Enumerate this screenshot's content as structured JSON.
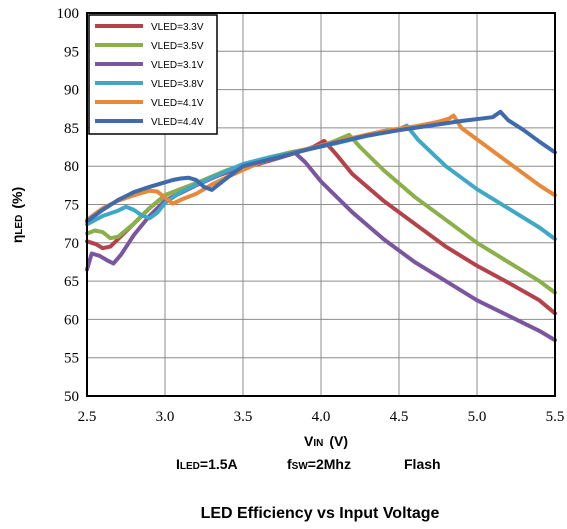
{
  "chart_data": {
    "type": "line",
    "title": "LED Efficiency vs Input Voltage",
    "xlabel": {
      "main": "V",
      "sub": "IN",
      "unit": "(V)"
    },
    "ylabel": {
      "main": "η",
      "sub": "LED",
      "unit": "(%)"
    },
    "conditions": [
      {
        "main": "I",
        "sub": "LED",
        "rest": "=1.5A"
      },
      {
        "main": "f",
        "sub": "SW",
        "rest": "=2Mhz"
      },
      {
        "main": "",
        "sub": "",
        "rest": "Flash"
      }
    ],
    "xlim": [
      2.5,
      5.5
    ],
    "ylim": [
      50,
      100
    ],
    "xticks": [
      "2.5",
      "3.0",
      "3.5",
      "4.0",
      "4.5",
      "5.0",
      "5.5"
    ],
    "yticks": [
      "50",
      "55",
      "60",
      "65",
      "70",
      "75",
      "80",
      "85",
      "90",
      "95",
      "100"
    ],
    "grid": true,
    "legend_position": "top-left",
    "series": [
      {
        "name": "VLED=3.3V",
        "color": "#b5414a",
        "points": [
          [
            2.5,
            70.2
          ],
          [
            2.56,
            69.8
          ],
          [
            2.6,
            69.3
          ],
          [
            2.65,
            69.5
          ],
          [
            2.7,
            70.5
          ],
          [
            2.75,
            71.5
          ],
          [
            2.8,
            72.5
          ],
          [
            2.9,
            74.5
          ],
          [
            3.0,
            76.2
          ],
          [
            3.2,
            77.8
          ],
          [
            3.4,
            79.2
          ],
          [
            3.6,
            80.3
          ],
          [
            3.8,
            81.5
          ],
          [
            3.95,
            82.5
          ],
          [
            4.02,
            83.3
          ],
          [
            4.1,
            81.5
          ],
          [
            4.2,
            79.0
          ],
          [
            4.4,
            75.5
          ],
          [
            4.6,
            72.5
          ],
          [
            4.8,
            69.5
          ],
          [
            5.0,
            67.0
          ],
          [
            5.2,
            64.8
          ],
          [
            5.4,
            62.5
          ],
          [
            5.5,
            60.8
          ]
        ]
      },
      {
        "name": "VLED=3.5V",
        "color": "#8ab049",
        "points": [
          [
            2.5,
            71.2
          ],
          [
            2.55,
            71.6
          ],
          [
            2.6,
            71.4
          ],
          [
            2.65,
            70.6
          ],
          [
            2.7,
            70.8
          ],
          [
            2.8,
            72.5
          ],
          [
            2.9,
            74.5
          ],
          [
            3.0,
            76.2
          ],
          [
            3.2,
            77.8
          ],
          [
            3.4,
            79.5
          ],
          [
            3.6,
            80.8
          ],
          [
            3.8,
            81.8
          ],
          [
            4.0,
            82.6
          ],
          [
            4.1,
            83.4
          ],
          [
            4.18,
            84.1
          ],
          [
            4.25,
            82.5
          ],
          [
            4.4,
            79.5
          ],
          [
            4.6,
            76.0
          ],
          [
            4.8,
            73.0
          ],
          [
            5.0,
            70.0
          ],
          [
            5.2,
            67.5
          ],
          [
            5.4,
            65.0
          ],
          [
            5.5,
            63.5
          ]
        ]
      },
      {
        "name": "VLED=3.1V",
        "color": "#7a56a0",
        "points": [
          [
            2.5,
            66.5
          ],
          [
            2.53,
            68.6
          ],
          [
            2.58,
            68.3
          ],
          [
            2.63,
            67.7
          ],
          [
            2.67,
            67.3
          ],
          [
            2.72,
            68.5
          ],
          [
            2.8,
            71.0
          ],
          [
            2.9,
            73.5
          ],
          [
            3.0,
            75.5
          ],
          [
            3.2,
            77.5
          ],
          [
            3.4,
            79.3
          ],
          [
            3.6,
            80.5
          ],
          [
            3.75,
            81.2
          ],
          [
            3.83,
            81.8
          ],
          [
            3.9,
            80.5
          ],
          [
            4.0,
            78.0
          ],
          [
            4.2,
            74.0
          ],
          [
            4.4,
            70.5
          ],
          [
            4.6,
            67.5
          ],
          [
            4.8,
            65.0
          ],
          [
            5.0,
            62.5
          ],
          [
            5.2,
            60.5
          ],
          [
            5.4,
            58.5
          ],
          [
            5.5,
            57.3
          ]
        ]
      },
      {
        "name": "VLED=3.8V",
        "color": "#3fa8c6",
        "points": [
          [
            2.5,
            72.4
          ],
          [
            2.6,
            73.5
          ],
          [
            2.7,
            74.2
          ],
          [
            2.75,
            74.7
          ],
          [
            2.8,
            74.3
          ],
          [
            2.85,
            73.6
          ],
          [
            2.9,
            73.2
          ],
          [
            2.95,
            73.9
          ],
          [
            3.0,
            75.2
          ],
          [
            3.1,
            76.6
          ],
          [
            3.2,
            77.6
          ],
          [
            3.3,
            78.5
          ],
          [
            3.5,
            80.3
          ],
          [
            3.7,
            81.3
          ],
          [
            3.9,
            82.1
          ],
          [
            4.1,
            83.0
          ],
          [
            4.3,
            84.0
          ],
          [
            4.5,
            84.8
          ],
          [
            4.55,
            85.3
          ],
          [
            4.62,
            83.5
          ],
          [
            4.8,
            80.0
          ],
          [
            5.0,
            77.0
          ],
          [
            5.2,
            74.5
          ],
          [
            5.4,
            72.0
          ],
          [
            5.5,
            70.5
          ]
        ]
      },
      {
        "name": "VLED=4.1V",
        "color": "#e8893a",
        "points": [
          [
            2.5,
            73.0
          ],
          [
            2.6,
            74.5
          ],
          [
            2.7,
            75.5
          ],
          [
            2.8,
            76.2
          ],
          [
            2.9,
            76.8
          ],
          [
            2.95,
            76.7
          ],
          [
            3.0,
            75.9
          ],
          [
            3.05,
            75.1
          ],
          [
            3.1,
            75.6
          ],
          [
            3.2,
            76.4
          ],
          [
            3.3,
            77.6
          ],
          [
            3.4,
            78.6
          ],
          [
            3.6,
            80.4
          ],
          [
            3.8,
            81.6
          ],
          [
            4.0,
            82.7
          ],
          [
            4.2,
            83.7
          ],
          [
            4.4,
            84.6
          ],
          [
            4.6,
            85.2
          ],
          [
            4.75,
            85.8
          ],
          [
            4.82,
            86.2
          ],
          [
            4.85,
            86.6
          ],
          [
            4.9,
            85.0
          ],
          [
            5.0,
            83.5
          ],
          [
            5.2,
            80.5
          ],
          [
            5.4,
            77.5
          ],
          [
            5.5,
            76.2
          ]
        ]
      },
      {
        "name": "VLED=4.4V",
        "color": "#3f6aac",
        "points": [
          [
            2.5,
            72.8
          ],
          [
            2.6,
            74.3
          ],
          [
            2.7,
            75.6
          ],
          [
            2.8,
            76.6
          ],
          [
            2.9,
            77.3
          ],
          [
            3.0,
            77.9
          ],
          [
            3.05,
            78.2
          ],
          [
            3.1,
            78.4
          ],
          [
            3.15,
            78.5
          ],
          [
            3.2,
            78.2
          ],
          [
            3.25,
            77.3
          ],
          [
            3.3,
            76.9
          ],
          [
            3.4,
            78.5
          ],
          [
            3.5,
            80.0
          ],
          [
            3.7,
            81.0
          ],
          [
            3.9,
            82.1
          ],
          [
            4.1,
            83.1
          ],
          [
            4.3,
            84.0
          ],
          [
            4.5,
            84.7
          ],
          [
            4.7,
            85.3
          ],
          [
            4.9,
            85.9
          ],
          [
            5.1,
            86.4
          ],
          [
            5.15,
            87.1
          ],
          [
            5.2,
            86.0
          ],
          [
            5.3,
            84.7
          ],
          [
            5.4,
            83.2
          ],
          [
            5.5,
            81.8
          ]
        ]
      }
    ]
  }
}
